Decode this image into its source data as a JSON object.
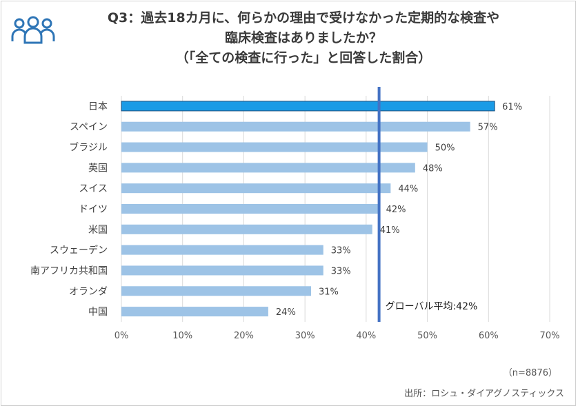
{
  "header": {
    "icon": "people-group-icon",
    "title_lines": [
      "Q3：過去18カ月に、何らかの理由で受けなかった定期的な検査や",
      "臨床検査はありましたか？",
      "（「全ての検査に行った」と回答した割合）"
    ]
  },
  "chart_data": {
    "type": "bar",
    "orientation": "horizontal",
    "title": "Q3：過去18カ月に、何らかの理由で受けなかった定期的な検査や臨床検査はありましたか？（「全ての検査に行った」と回答した割合）",
    "categories": [
      "日本",
      "スペイン",
      "ブラジル",
      "英国",
      "スイス",
      "ドイツ",
      "米国",
      "スウェーデン",
      "南アフリカ共和国",
      "オランダ",
      "中国"
    ],
    "values": [
      61,
      57,
      50,
      48,
      44,
      42,
      41,
      33,
      33,
      31,
      24
    ],
    "value_labels": [
      "61%",
      "57%",
      "50%",
      "48%",
      "44%",
      "42%",
      "41%",
      "33%",
      "33%",
      "31%",
      "24%"
    ],
    "highlight_category": "日本",
    "xlim": [
      0,
      70
    ],
    "x_ticks": [
      0,
      10,
      20,
      30,
      40,
      50,
      60,
      70
    ],
    "x_tick_labels": [
      "0%",
      "10%",
      "20%",
      "30%",
      "40%",
      "50%",
      "60%",
      "70%"
    ],
    "grid": true,
    "reference_line": {
      "value": 42,
      "label": "グローバル平均:42%"
    },
    "colors": {
      "bar": "#9dc3e6",
      "highlight": "#1a9be6",
      "highlight_border": "#1f4e79",
      "reference": "#4472c4",
      "grid": "#d9d9d9"
    },
    "xlabel": "",
    "ylabel": ""
  },
  "footer": {
    "sample": "（n=8876）",
    "source": "出所：ロシュ・ダイアグノスティックス"
  }
}
